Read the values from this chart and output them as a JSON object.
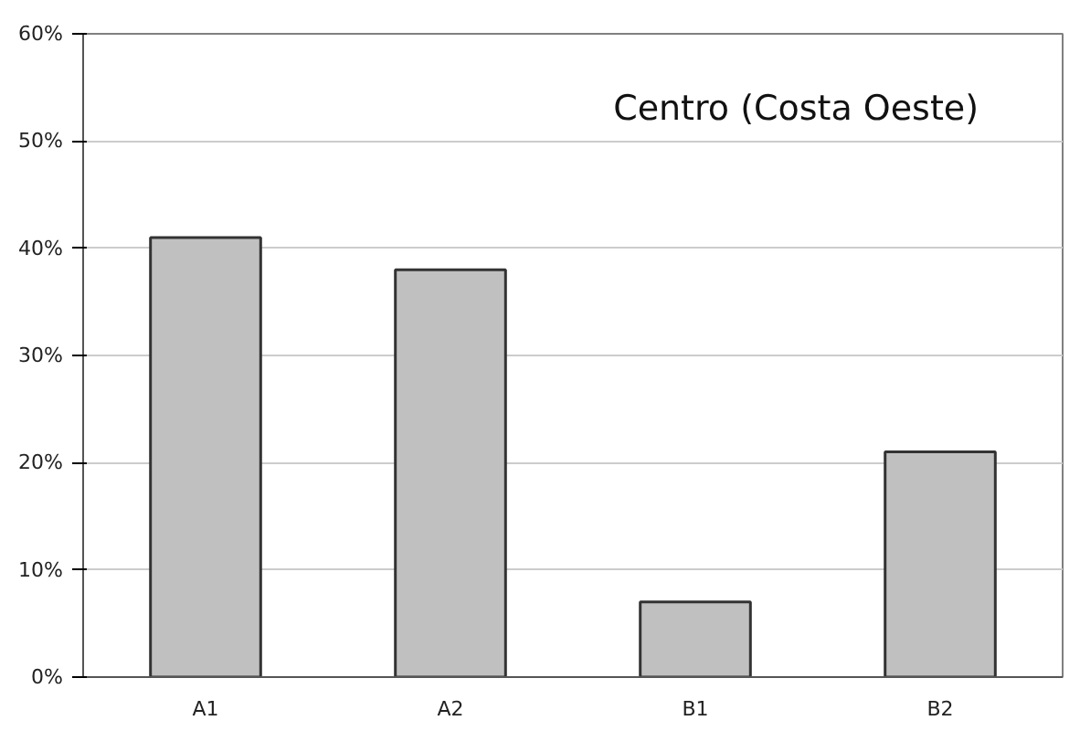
{
  "chart_data": {
    "type": "bar",
    "title": "Centro (Costa Oeste)",
    "categories": [
      "A1",
      "A2",
      "B1",
      "B2"
    ],
    "values": [
      41,
      38,
      7,
      21
    ],
    "color": "#c0c0c0",
    "ylim": [
      0,
      60
    ],
    "yticks": [
      {
        "value": 0,
        "label": "0%"
      },
      {
        "value": 10,
        "label": "10%"
      },
      {
        "value": 20,
        "label": "20%"
      },
      {
        "value": 30,
        "label": "30%"
      },
      {
        "value": 40,
        "label": "40%"
      },
      {
        "value": 50,
        "label": "50%"
      },
      {
        "value": 60,
        "label": "60%"
      }
    ],
    "grid": "y"
  }
}
